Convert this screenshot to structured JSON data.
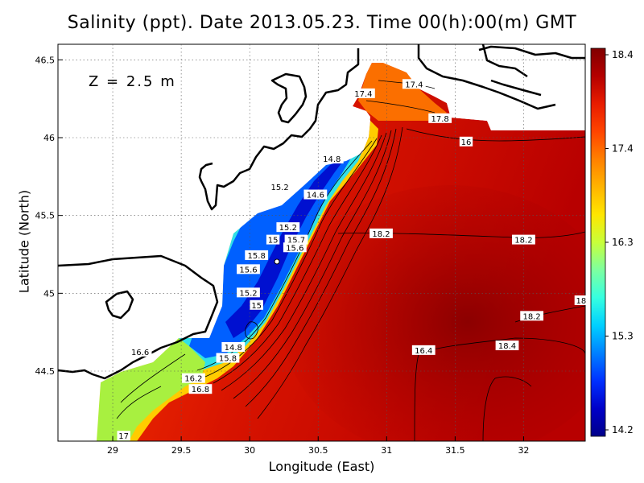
{
  "map": {
    "title": "Salinity (ppt). Date 2013.05.23. Time 00(h):00(m) GMT",
    "xlabel": "Longitude (East)",
    "ylabel": "Latitude (North)",
    "depth_label": "Z = 2.5 m",
    "lon_range": [
      28.6,
      32.45
    ],
    "lat_range": [
      44.05,
      46.6
    ],
    "lon_ticks": [
      "29",
      "29.5",
      "30",
      "30.5",
      "31",
      "31.5",
      "32"
    ],
    "lat_ticks": [
      "44.5",
      "45",
      "45.5",
      "46",
      "46.5"
    ],
    "colorbar": {
      "ticks": [
        "18.4",
        "17.4",
        "16.3",
        "15.3",
        "14.2"
      ],
      "range": [
        14.2,
        18.4
      ],
      "colors": [
        "#800000",
        "#b40000",
        "#e81c00",
        "#ff4400",
        "#ff8000",
        "#ffb400",
        "#ffe600",
        "#c8ff3a",
        "#7dffa0",
        "#36ffe0",
        "#00d0ff",
        "#0080ff",
        "#0030ff",
        "#0000c8",
        "#00008a"
      ]
    },
    "contour_labels": [
      {
        "text": "17.4",
        "lon": 31.2,
        "lat": 46.34
      },
      {
        "text": "17.4",
        "lon": 30.83,
        "lat": 46.28
      },
      {
        "text": "17.8",
        "lon": 31.39,
        "lat": 46.12
      },
      {
        "text": "16",
        "lon": 31.58,
        "lat": 45.97
      },
      {
        "text": "14.8",
        "lon": 30.6,
        "lat": 45.86
      },
      {
        "text": "15.2",
        "lon": 30.22,
        "lat": 45.68
      },
      {
        "text": "14.6",
        "lon": 30.48,
        "lat": 45.63
      },
      {
        "text": "15.2",
        "lon": 30.28,
        "lat": 45.42
      },
      {
        "text": "15",
        "lon": 30.17,
        "lat": 45.34
      },
      {
        "text": "15.7",
        "lon": 30.34,
        "lat": 45.34
      },
      {
        "text": "15.6",
        "lon": 30.33,
        "lat": 45.29
      },
      {
        "text": "15.8",
        "lon": 30.05,
        "lat": 45.24
      },
      {
        "text": "18.2",
        "lon": 30.96,
        "lat": 45.38
      },
      {
        "text": "18.2",
        "lon": 32.0,
        "lat": 45.34
      },
      {
        "text": "15.6",
        "lon": 29.99,
        "lat": 45.15
      },
      {
        "text": "15.2",
        "lon": 29.99,
        "lat": 45.0
      },
      {
        "text": "15",
        "lon": 30.05,
        "lat": 44.92
      },
      {
        "text": "18",
        "lon": 32.42,
        "lat": 44.95
      },
      {
        "text": "18.2",
        "lon": 32.06,
        "lat": 44.85
      },
      {
        "text": "14.8",
        "lon": 29.88,
        "lat": 44.65
      },
      {
        "text": "16.6",
        "lon": 29.2,
        "lat": 44.62
      },
      {
        "text": "16.4",
        "lon": 31.27,
        "lat": 44.63
      },
      {
        "text": "18.4",
        "lon": 31.88,
        "lat": 44.66
      },
      {
        "text": "15.8",
        "lon": 29.84,
        "lat": 44.58
      },
      {
        "text": "16.2",
        "lon": 29.59,
        "lat": 44.45
      },
      {
        "text": "16.8",
        "lon": 29.64,
        "lat": 44.38
      },
      {
        "text": "17",
        "lon": 29.08,
        "lat": 44.08
      }
    ]
  }
}
